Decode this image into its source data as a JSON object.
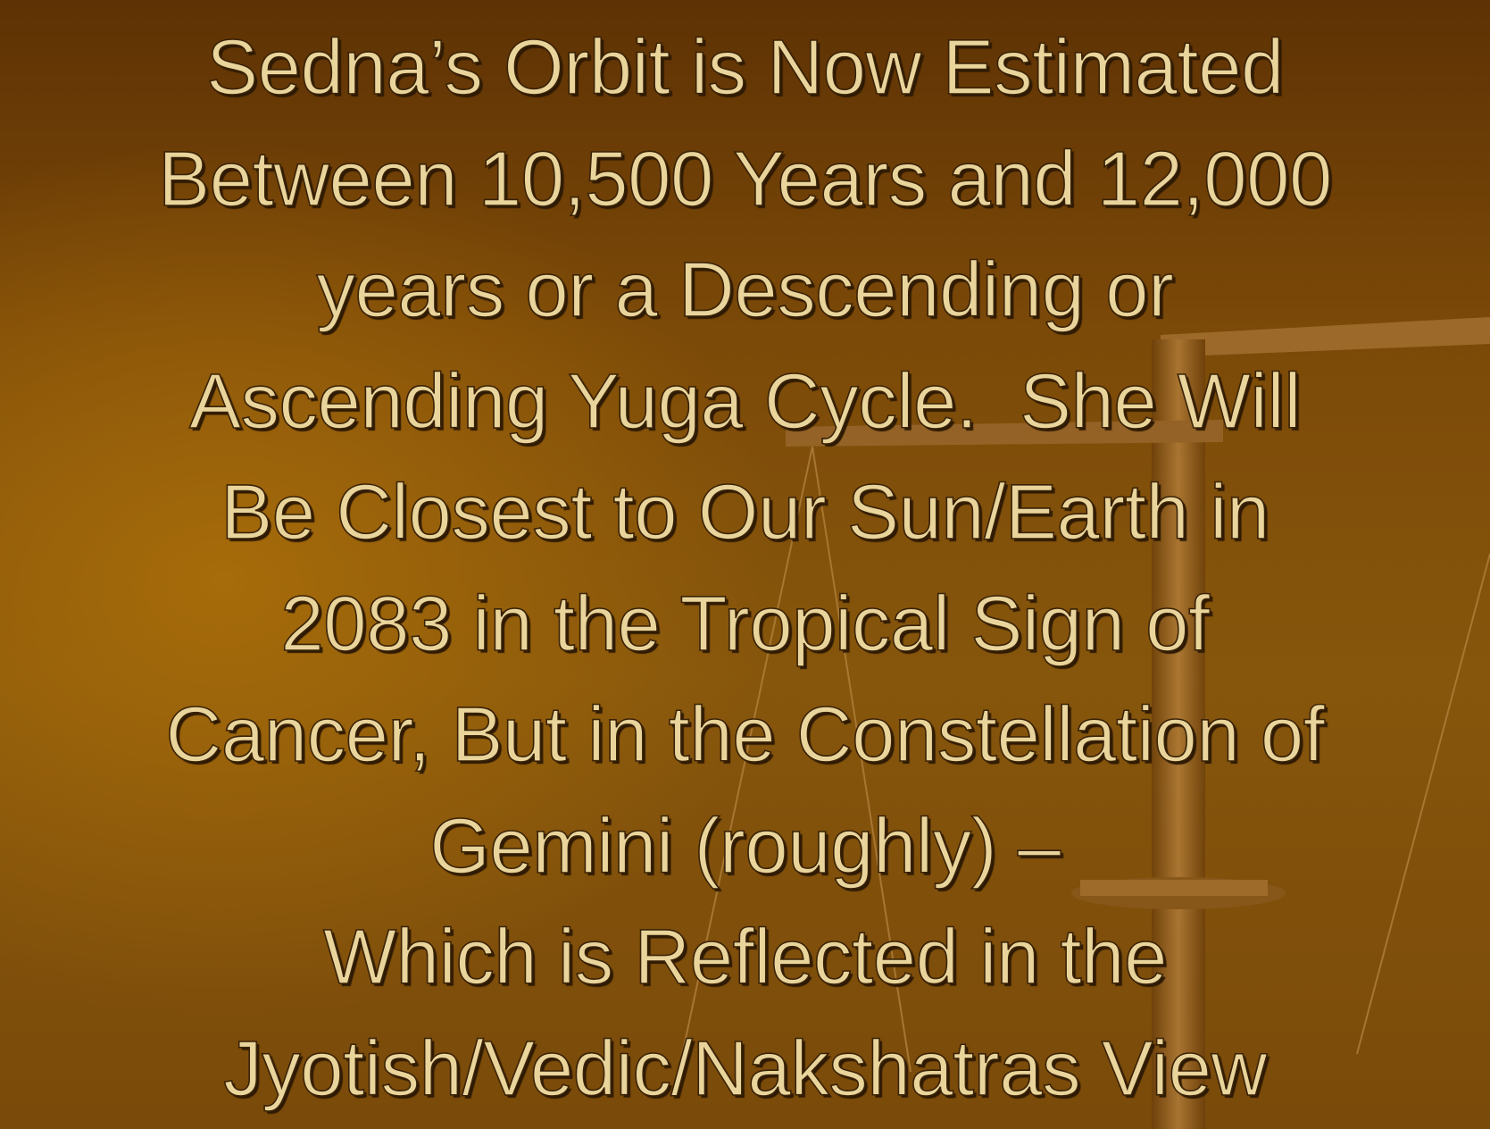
{
  "slide": {
    "lines": [
      "Sedna’s Orbit is Now Estimated",
      "Between 10,500 Years and 12,000",
      "years or a Descending or",
      "Ascending Yuga Cycle.  She Will",
      "Be Closest to Our Sun/Earth in",
      "2083 in the Tropical Sign of",
      "Cancer, But in the Constellation of",
      "Gemini (roughly) –",
      "Which is Reflected in the",
      "Jyotish/Vedic/Nakshatras View"
    ]
  }
}
